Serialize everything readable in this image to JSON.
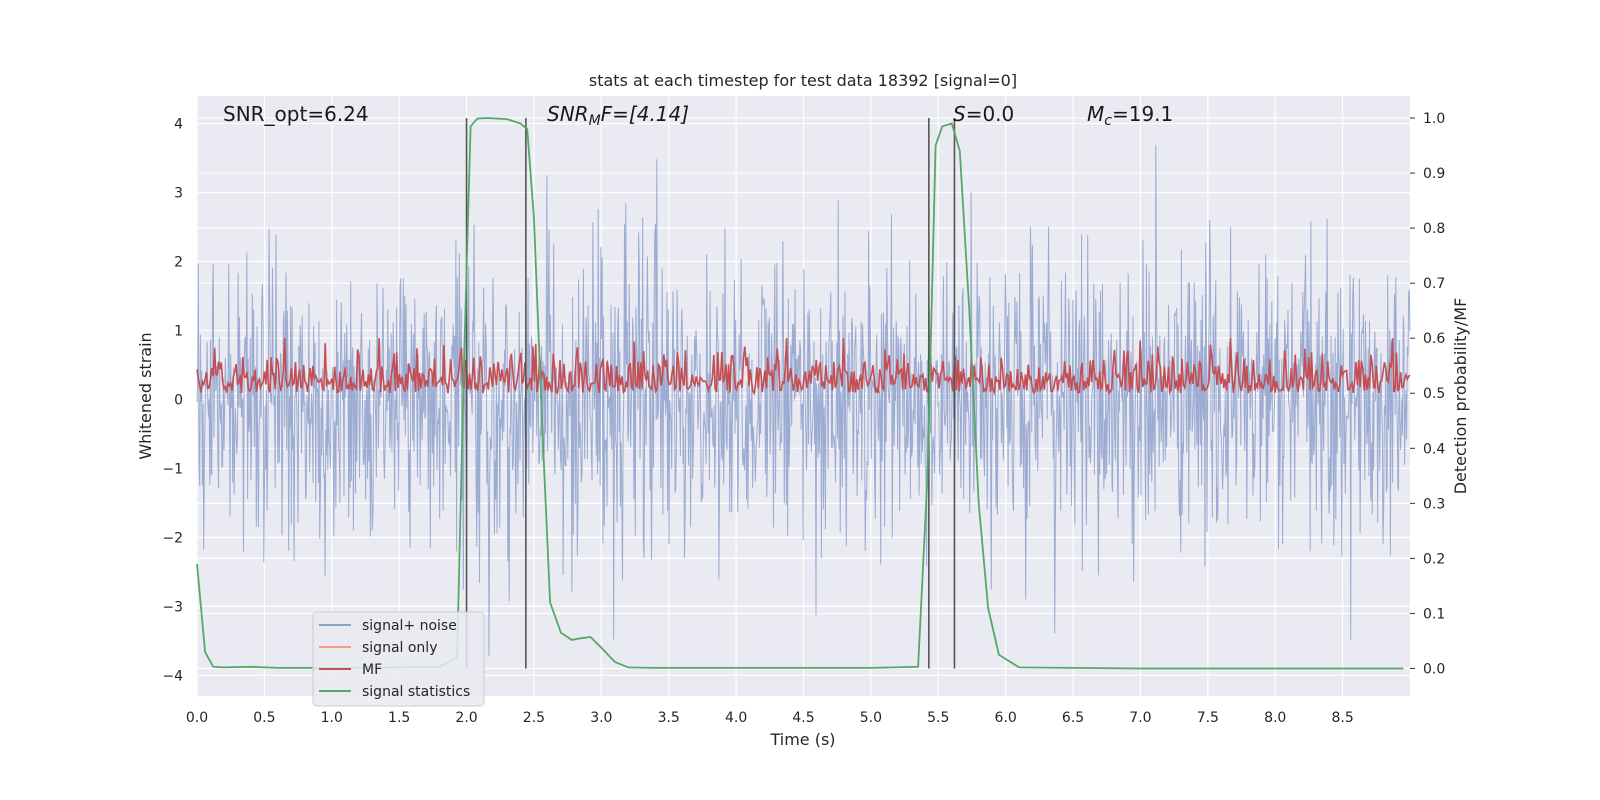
{
  "chart_data": {
    "type": "line",
    "title": "stats at each timestep for test data 18392 [signal=0]",
    "xlabel": "Time (s)",
    "ylabel_left": "Whitened strain",
    "ylabel_right": "Detection probability/MF",
    "xlim": [
      0.0,
      9.0
    ],
    "ylim_left": [
      -4.3,
      4.4
    ],
    "ylim_right": [
      -0.05,
      1.04
    ],
    "x_ticks": [
      "0.0",
      "0.5",
      "1.0",
      "1.5",
      "2.0",
      "2.5",
      "3.0",
      "3.5",
      "4.0",
      "4.5",
      "5.0",
      "5.5",
      "6.0",
      "6.5",
      "7.0",
      "7.5",
      "8.0",
      "8.5"
    ],
    "y_left_ticks": [
      "4",
      "3",
      "2",
      "1",
      "0",
      "−1",
      "−2",
      "−3",
      "−4"
    ],
    "y_right_ticks": [
      "1.0",
      "0.9",
      "0.8",
      "0.7",
      "0.6",
      "0.5",
      "0.4",
      "0.3",
      "0.2",
      "0.1",
      "0.0"
    ],
    "grid": true,
    "annotations": {
      "snr_opt": "SNR_opt=6.24",
      "snr_mf_label": "SNR",
      "snr_mf_sub": "M",
      "snr_mf_rest": "F=[4.14]",
      "s_label": "S",
      "s_value": "=0.0",
      "mc_label": "M",
      "mc_sub": "c",
      "mc_value": "=19.1"
    },
    "legend_position": "lower-left",
    "series": [
      {
        "name": "signal+ noise",
        "axis": "left",
        "color": "#8da0cb",
        "description_range": [
          -3.9,
          4.0
        ],
        "typical_envelope": [
          -1.6,
          2.2
        ]
      },
      {
        "name": "signal only",
        "axis": "left",
        "color": "#f2a07b",
        "values": []
      },
      {
        "name": "MF",
        "axis": "right",
        "color": "#c44e52",
        "typical_range": [
          0.5,
          0.6
        ]
      },
      {
        "name": "signal statistics",
        "axis": "right",
        "color": "#55a868",
        "x": [
          0.0,
          0.06,
          0.12,
          0.2,
          0.4,
          0.6,
          1.0,
          1.5,
          1.8,
          1.93,
          1.98,
          2.03,
          2.08,
          2.15,
          2.3,
          2.4,
          2.45,
          2.5,
          2.56,
          2.62,
          2.7,
          2.78,
          2.85,
          2.92,
          3.0,
          3.1,
          3.2,
          3.4,
          4.0,
          5.0,
          5.35,
          5.42,
          5.48,
          5.53,
          5.6,
          5.66,
          5.73,
          5.8,
          5.87,
          5.95,
          6.1,
          7.0,
          8.0,
          8.95
        ],
        "values": [
          0.19,
          0.03,
          0.003,
          0.002,
          0.003,
          0.001,
          0.001,
          0.002,
          0.003,
          0.02,
          0.55,
          0.985,
          0.999,
          1.0,
          0.998,
          0.99,
          0.98,
          0.82,
          0.45,
          0.12,
          0.065,
          0.052,
          0.055,
          0.057,
          0.038,
          0.012,
          0.002,
          0.001,
          0.001,
          0.001,
          0.003,
          0.35,
          0.95,
          0.985,
          0.99,
          0.94,
          0.65,
          0.3,
          0.11,
          0.025,
          0.002,
          0.0,
          0.0,
          0.0
        ]
      },
      {
        "name": "markers",
        "type": "vline",
        "color": "#555555",
        "x": [
          2.0,
          2.44,
          5.43,
          5.62
        ],
        "range_right": [
          0.0,
          1.0
        ]
      }
    ]
  }
}
